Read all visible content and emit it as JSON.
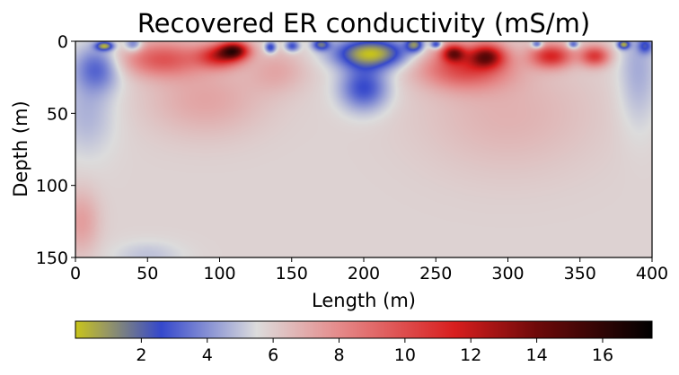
{
  "chart_data": {
    "type": "heatmap",
    "title": "Recovered ER conductivity (mS/m)",
    "xlabel": "Length (m)",
    "ylabel": "Depth (m)",
    "xlim": [
      0,
      400
    ],
    "ylim": [
      150,
      0
    ],
    "xticks": [
      "0",
      "50",
      "100",
      "150",
      "200",
      "250",
      "300",
      "350",
      "400"
    ],
    "yticks": [
      "0",
      "50",
      "100",
      "150"
    ],
    "colorbar": {
      "orientation": "horizontal",
      "position": "bottom",
      "range": [
        0,
        17.5
      ],
      "ticks": [
        "2",
        "4",
        "6",
        "8",
        "10",
        "12",
        "14",
        "16"
      ],
      "colors": [
        {
          "value": 0.0,
          "color": "#c8c41a"
        },
        {
          "value": 0.9,
          "color": "#9a9a60"
        },
        {
          "value": 2.6,
          "color": "#3548cc"
        },
        {
          "value": 5.5,
          "color": "#dcdcdc"
        },
        {
          "value": 8.0,
          "color": "#e58a8a"
        },
        {
          "value": 11.5,
          "color": "#d81e1e"
        },
        {
          "value": 14.0,
          "color": "#6e0a0a"
        },
        {
          "value": 17.5,
          "color": "#000000"
        }
      ]
    },
    "background_value": 5.8,
    "features": [
      {
        "x": 20,
        "depth": 3,
        "value": 1.0,
        "sx": 6,
        "sy": 3
      },
      {
        "x": 15,
        "depth": 18,
        "value": 3.3,
        "sx": 16,
        "sy": 16
      },
      {
        "x": 8,
        "depth": 50,
        "value": 4.7,
        "sx": 20,
        "sy": 30
      },
      {
        "x": 4,
        "depth": 125,
        "value": 7.4,
        "sx": 12,
        "sy": 22
      },
      {
        "x": 40,
        "depth": 2,
        "value": 3.0,
        "sx": 6,
        "sy": 5
      },
      {
        "x": 60,
        "depth": 12,
        "value": 9.5,
        "sx": 28,
        "sy": 12
      },
      {
        "x": 100,
        "depth": 10,
        "value": 11.0,
        "sx": 15,
        "sy": 8
      },
      {
        "x": 110,
        "depth": 6,
        "value": 13.0,
        "sx": 10,
        "sy": 6
      },
      {
        "x": 90,
        "depth": 40,
        "value": 7.2,
        "sx": 40,
        "sy": 25
      },
      {
        "x": 135,
        "depth": 4,
        "value": 2.0,
        "sx": 4,
        "sy": 4
      },
      {
        "x": 150,
        "depth": 3,
        "value": 2.5,
        "sx": 5,
        "sy": 4
      },
      {
        "x": 140,
        "depth": 20,
        "value": 7.0,
        "sx": 20,
        "sy": 15
      },
      {
        "x": 200,
        "depth": 32,
        "value": 2.6,
        "sx": 17,
        "sy": 16
      },
      {
        "x": 205,
        "depth": 8,
        "value": 0.3,
        "sx": 25,
        "sy": 10
      },
      {
        "x": 170,
        "depth": 2,
        "value": 2.0,
        "sx": 6,
        "sy": 4
      },
      {
        "x": 235,
        "depth": 2,
        "value": 1.5,
        "sx": 6,
        "sy": 5
      },
      {
        "x": 270,
        "depth": 18,
        "value": 10.0,
        "sx": 30,
        "sy": 14
      },
      {
        "x": 285,
        "depth": 10,
        "value": 12.0,
        "sx": 12,
        "sy": 8
      },
      {
        "x": 262,
        "depth": 8,
        "value": 11.8,
        "sx": 8,
        "sy": 6
      },
      {
        "x": 330,
        "depth": 10,
        "value": 11.0,
        "sx": 14,
        "sy": 8
      },
      {
        "x": 360,
        "depth": 10,
        "value": 10.5,
        "sx": 10,
        "sy": 7
      },
      {
        "x": 300,
        "depth": 50,
        "value": 6.8,
        "sx": 60,
        "sy": 40
      },
      {
        "x": 390,
        "depth": 20,
        "value": 4.5,
        "sx": 14,
        "sy": 40
      },
      {
        "x": 395,
        "depth": 3,
        "value": 3.2,
        "sx": 5,
        "sy": 5
      },
      {
        "x": 380,
        "depth": 2,
        "value": 1.0,
        "sx": 4,
        "sy": 3
      },
      {
        "x": 345,
        "depth": 2,
        "value": 2.5,
        "sx": 4,
        "sy": 3
      },
      {
        "x": 250,
        "depth": 2,
        "value": 1.8,
        "sx": 4,
        "sy": 3
      },
      {
        "x": 320,
        "depth": 2,
        "value": 2.2,
        "sx": 4,
        "sy": 3
      },
      {
        "x": 50,
        "depth": 148,
        "value": 5.0,
        "sx": 25,
        "sy": 10
      }
    ]
  }
}
